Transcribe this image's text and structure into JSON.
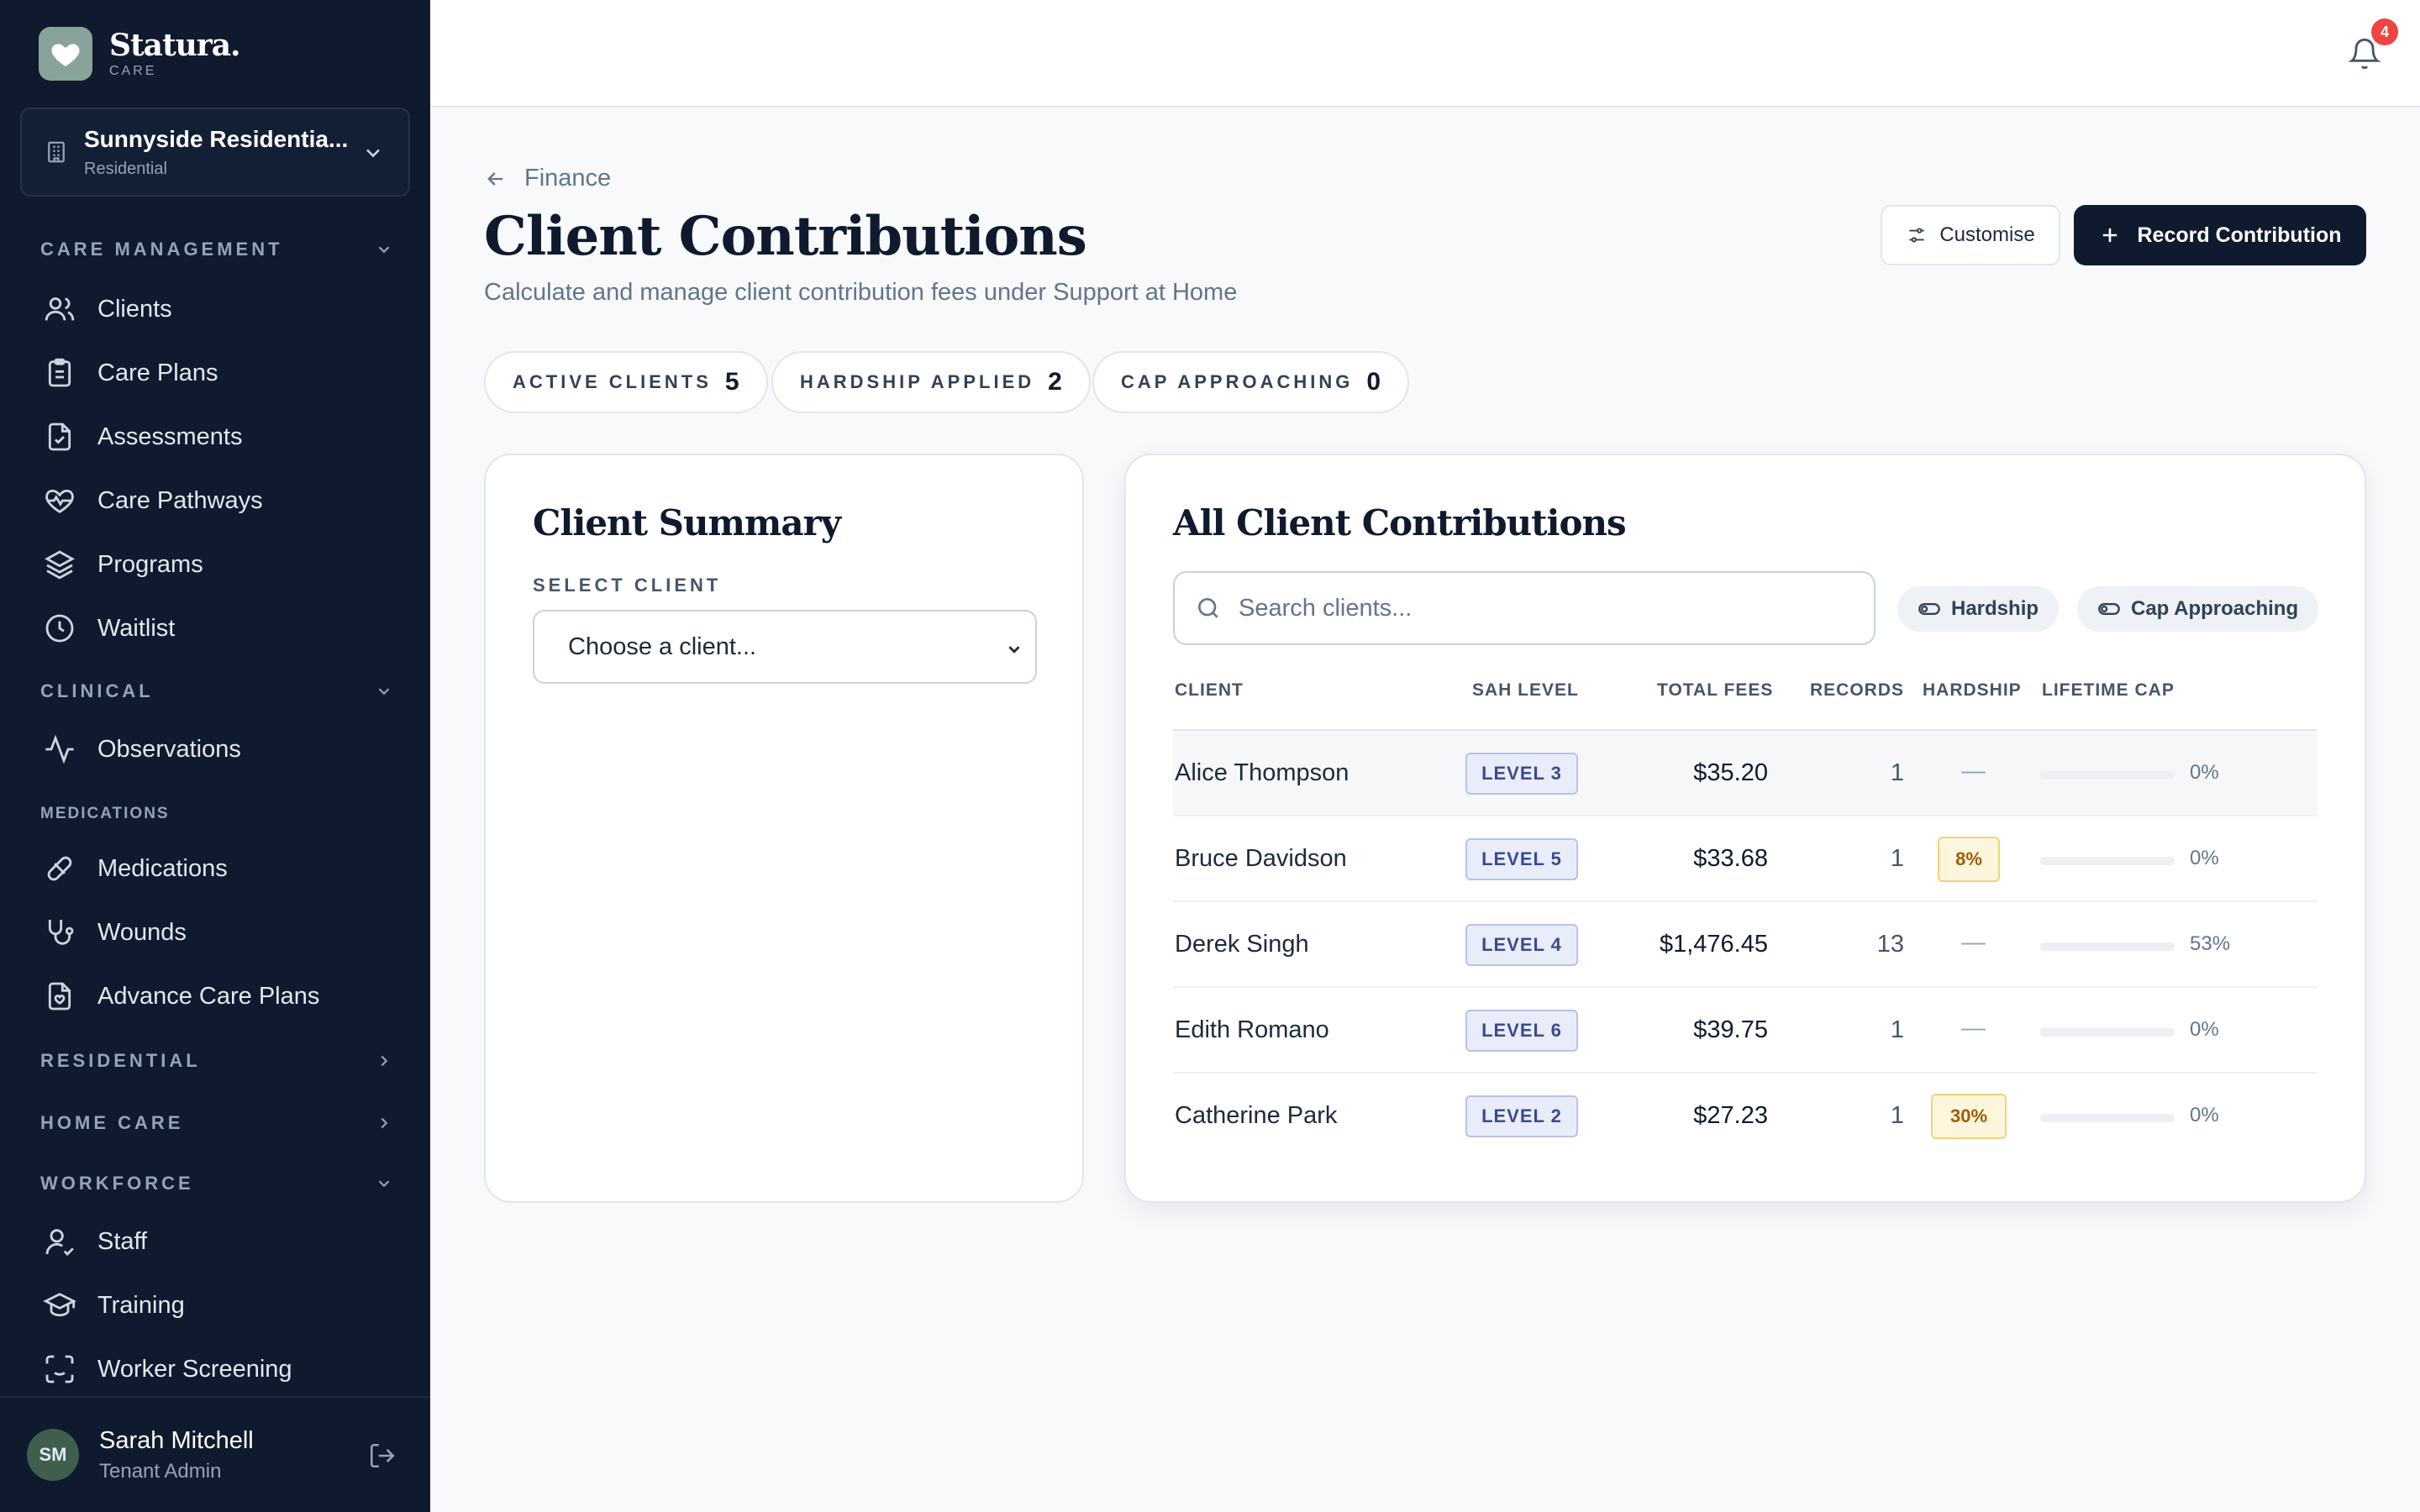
{
  "brand": {
    "name": "Statura.",
    "sub": "CARE"
  },
  "facility": {
    "name": "Sunnyside Residentia...",
    "type": "Residential"
  },
  "sidebar": {
    "sections": {
      "care_management": "CARE MANAGEMENT",
      "clinical": "CLINICAL",
      "medications": "MEDICATIONS",
      "residential": "RESIDENTIAL",
      "home_care": "HOME CARE",
      "workforce": "WORKFORCE"
    },
    "items": {
      "clients": "Clients",
      "care_plans": "Care Plans",
      "assessments": "Assessments",
      "care_pathways": "Care Pathways",
      "programs": "Programs",
      "waitlist": "Waitlist",
      "observations": "Observations",
      "medications": "Medications",
      "wounds": "Wounds",
      "advance_care_plans": "Advance Care Plans",
      "staff": "Staff",
      "training": "Training",
      "worker_screening": "Worker Screening"
    }
  },
  "user": {
    "initials": "SM",
    "name": "Sarah Mitchell",
    "role": "Tenant Admin"
  },
  "notifications": {
    "count": "4"
  },
  "header": {
    "breadcrumb": "Finance",
    "title": "Client Contributions",
    "subtitle": "Calculate and manage client contribution fees under Support at Home",
    "customise_label": "Customise",
    "record_label": "Record Contribution"
  },
  "stats": [
    {
      "label": "ACTIVE CLIENTS",
      "value": "5"
    },
    {
      "label": "HARDSHIP APPLIED",
      "value": "2"
    },
    {
      "label": "CAP APPROACHING",
      "value": "0"
    }
  ],
  "summary": {
    "title": "Client Summary",
    "select_label": "SELECT CLIENT",
    "select_value": "Choose a client..."
  },
  "contributions": {
    "title": "All Client Contributions",
    "search_placeholder": "Search clients...",
    "filters": {
      "hardship": "Hardship",
      "cap": "Cap Approaching"
    },
    "columns": {
      "client": "CLIENT",
      "sah_level": "SAH LEVEL",
      "total_fees": "TOTAL FEES",
      "records": "RECORDS",
      "hardship": "HARDSHIP",
      "lifetime_cap": "LIFETIME CAP"
    },
    "rows": [
      {
        "client": "Alice Thompson",
        "level": "LEVEL 3",
        "fees": "$35.20",
        "records": "1",
        "hardship": "—",
        "cap_label": "0%",
        "cap_fraction": 0
      },
      {
        "client": "Bruce Davidson",
        "level": "LEVEL 5",
        "fees": "$33.68",
        "records": "1",
        "hardship": "8%",
        "cap_label": "0%",
        "cap_fraction": 0
      },
      {
        "client": "Derek Singh",
        "level": "LEVEL 4",
        "fees": "$1,476.45",
        "records": "13",
        "hardship": "—",
        "cap_label": "53%",
        "cap_fraction": 0.53
      },
      {
        "client": "Edith Romano",
        "level": "LEVEL 6",
        "fees": "$39.75",
        "records": "1",
        "hardship": "—",
        "cap_label": "0%",
        "cap_fraction": 0
      },
      {
        "client": "Catherine Park",
        "level": "LEVEL 2",
        "fees": "$27.23",
        "records": "1",
        "hardship": "30%",
        "cap_label": "0%",
        "cap_fraction": 0
      }
    ]
  },
  "colors": {
    "sidebar": "#0f1a2e",
    "accent": "#0f1a2e",
    "cap_fill": "#22c55e",
    "badge": "#ef4444"
  }
}
